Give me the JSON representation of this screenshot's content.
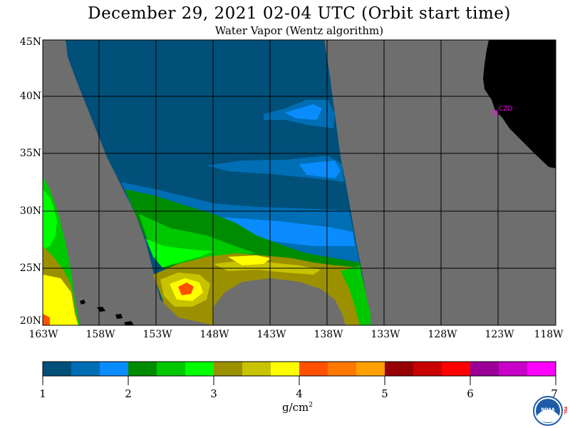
{
  "title": "December 29, 2021  02-04 UTC  (Orbit start time)",
  "subtitle": "Water Vapor (Wentz algorithm)",
  "lat_labels": [
    "45N",
    "40N",
    "35N",
    "30N",
    "25N",
    "20N"
  ],
  "lon_labels": [
    "163W",
    "158W",
    "153W",
    "148W",
    "143W",
    "138W",
    "133W",
    "128W",
    "123W",
    "118W"
  ],
  "station_label": "CZD",
  "colorbar": {
    "ticks": [
      "1",
      "2",
      "3",
      "4",
      "5",
      "6",
      "7"
    ],
    "unit_base": "g/cm",
    "unit_exp": "2",
    "colors": [
      "#00507a",
      "#006eb4",
      "#0a8cff",
      "#008c00",
      "#00c800",
      "#00ff00",
      "#9b9100",
      "#c8c300",
      "#ffff00",
      "#ff5000",
      "#ff7800",
      "#ffa000",
      "#960000",
      "#c80000",
      "#ff0000",
      "#9b0096",
      "#c800c8",
      "#ff00ff"
    ]
  },
  "colors": {
    "no_data": "#6e6e6e",
    "land": "#000000",
    "station": "#ff00ff"
  },
  "logo": {
    "agency": "NOAA",
    "side_text": "PSL"
  }
}
